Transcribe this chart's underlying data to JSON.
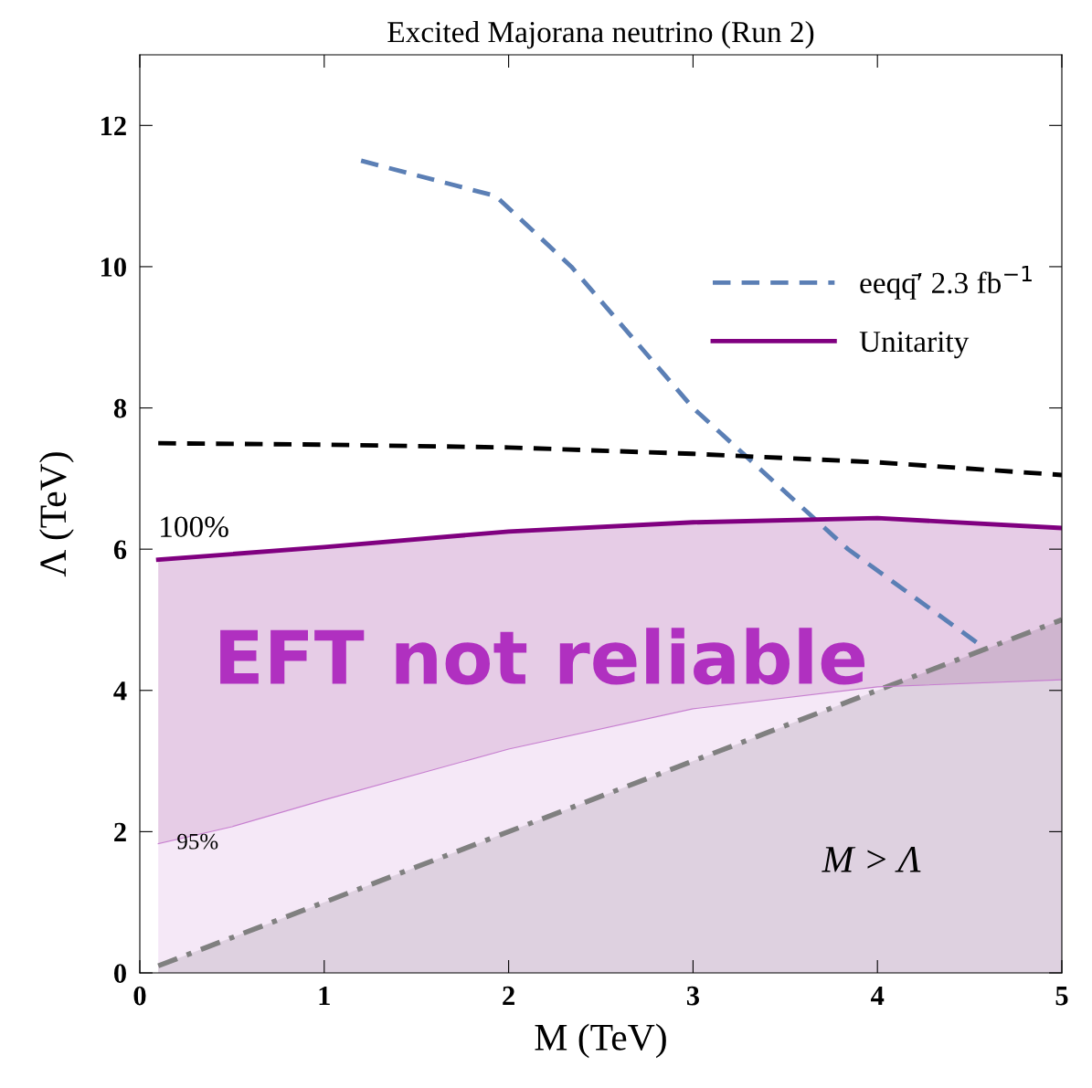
{
  "chart_data": {
    "type": "line",
    "title": "Excited Majorana neutrino (Run 2)",
    "xlabel": "M (TeV)",
    "ylabel": "Λ (TeV)",
    "xlim": [
      0,
      5
    ],
    "ylim": [
      0,
      13
    ],
    "xticks": [
      0,
      1,
      2,
      3,
      4,
      5
    ],
    "yticks": [
      0,
      2,
      4,
      6,
      8,
      10,
      12
    ],
    "grid": false,
    "legend": "top right",
    "series": [
      {
        "type": "area",
        "color": "#808080",
        "line_style": "dashdot",
        "x": [
          0.1,
          5
        ],
        "values": [
          0.1,
          5
        ]
      },
      {
        "type": "area",
        "color": "#c77fd0",
        "line_style": "solid",
        "x": [
          0.1,
          0.5,
          1,
          2,
          3,
          4,
          5
        ],
        "values": [
          1.83,
          2.07,
          2.45,
          3.17,
          3.74,
          4.05,
          4.15
        ]
      },
      {
        "name": "eeqq̄′ 2.3 fb$^{−1}$",
        "type": "line",
        "color": "#5b7fb5",
        "line_style": "dashed",
        "x": [
          1.2,
          1.93,
          2.34,
          3.0,
          3.84,
          4.58
        ],
        "values": [
          11.5,
          11.0,
          10.0,
          8.0,
          6.0,
          4.6
        ]
      },
      {
        "color": "#000000",
        "line_style": "dashed",
        "x": [
          0.1,
          1,
          2,
          3,
          4,
          5
        ],
        "values": [
          7.5,
          7.48,
          7.44,
          7.35,
          7.23,
          7.05
        ]
      },
      {
        "name": "Unitarity",
        "type": "line",
        "color": "#800080",
        "line_style": "solid",
        "x": [
          0.1,
          0.5,
          1,
          2,
          3,
          4,
          5
        ],
        "values": [
          5.85,
          5.93,
          6.03,
          6.25,
          6.38,
          6.44,
          6.3
        ],
        "lower": [
          1.83,
          2.07,
          2.45,
          3.17,
          3.74,
          4.05,
          4.15
        ],
        "upper": [
          5.85,
          5.93,
          6.03,
          6.25,
          6.38,
          6.44,
          6.3
        ]
      }
    ],
    "annotations": [
      "100%",
      "95%",
      "EFT not reliable",
      "M > Λ"
    ]
  }
}
